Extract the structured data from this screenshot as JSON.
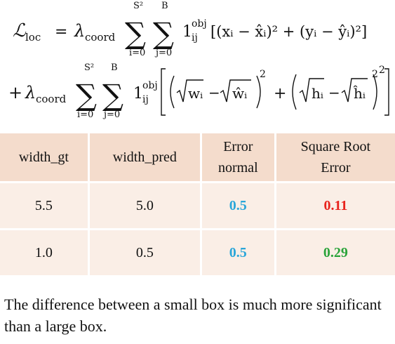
{
  "formula": {
    "lhs": "ℒ",
    "lhs_sub": "loc",
    "lambda": "λ",
    "lambda_sub": "coord",
    "sum_upper_outer": "S²",
    "sum_upper_inner": "B",
    "sum_lower_outer": "i=0",
    "sum_lower_inner": "j=0",
    "indicator": "1",
    "indicator_sup": "obj",
    "indicator_sub": "ij",
    "line1_term": "[(xᵢ − x̂ᵢ)² + (yᵢ − ŷᵢ)²]",
    "plus": "+",
    "equals": "=",
    "w_term": "wᵢ",
    "w_hat_term": "ŵᵢ",
    "h_term": "hᵢ",
    "h_hat_term": "ĥᵢ",
    "minus": "−",
    "square": "2"
  },
  "table": {
    "headers": [
      {
        "line1": "width_gt",
        "line2": ""
      },
      {
        "line1": "width_pred",
        "line2": ""
      },
      {
        "line1": "Error",
        "line2": "normal"
      },
      {
        "line1": "Square Root",
        "line2": "Error"
      }
    ],
    "rows": [
      {
        "width_gt": "5.5",
        "width_pred": "5.0",
        "error_normal": "0.5",
        "sqrt_error": "0.11"
      },
      {
        "width_gt": "1.0",
        "width_pred": "0.5",
        "error_normal": "0.5",
        "sqrt_error": "0.29"
      }
    ],
    "colors": {
      "header_bg": "#f4dccc",
      "row_bg": "#faeee6",
      "error_normal": "#2aa6d9",
      "sqrt_error_row1": "#e8231c",
      "sqrt_error_row2": "#2aa33a"
    }
  },
  "caption": "The difference between a small box is much more significant than a large box."
}
